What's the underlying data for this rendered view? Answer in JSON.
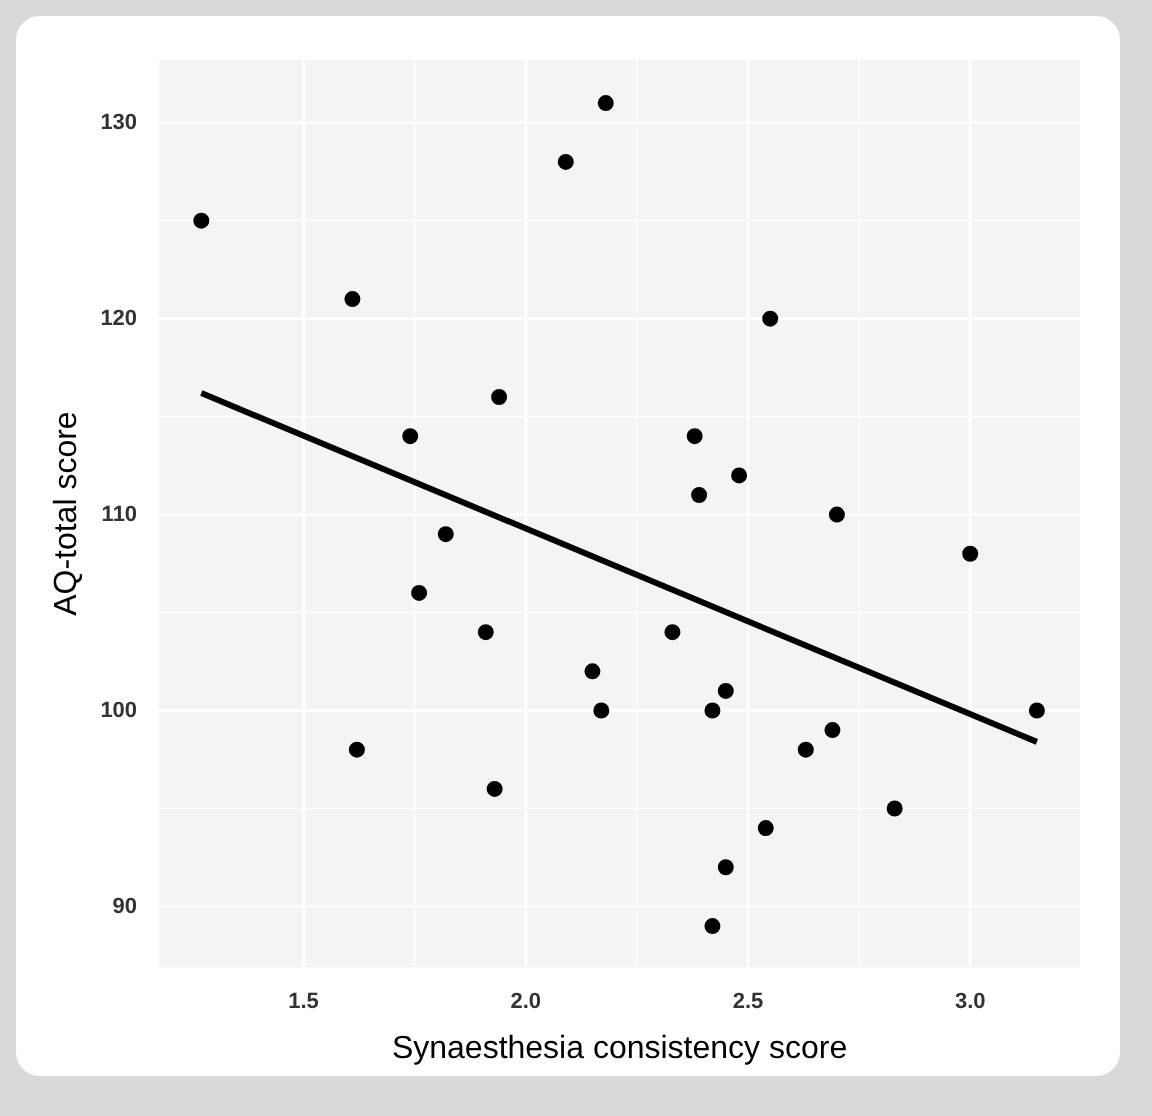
{
  "chart_data": {
    "type": "scatter",
    "xlabel": "Synaesthesia consistency score",
    "ylabel": "AQ-total score",
    "xlim": [
      1.175,
      3.247
    ],
    "xticks": [
      {
        "value": 1.5,
        "label": "1.5"
      },
      {
        "value": 2.0,
        "label": "2.0"
      },
      {
        "value": 2.5,
        "label": "2.5"
      },
      {
        "value": 3.0,
        "label": "3.0"
      }
    ],
    "ylim": [
      86.9,
      133.2
    ],
    "yticks": [
      90,
      100,
      110,
      120,
      130
    ],
    "grid": true,
    "legend": false,
    "series": [
      {
        "marker": "circle",
        "color": "#000000",
        "x": [
          1.27,
          1.61,
          1.62,
          1.74,
          1.76,
          1.82,
          1.91,
          1.93,
          1.94,
          2.09,
          2.15,
          2.17,
          2.18,
          2.33,
          2.38,
          2.39,
          2.42,
          2.42,
          2.45,
          2.45,
          2.48,
          2.54,
          2.55,
          2.63,
          2.69,
          2.7,
          2.83,
          3.0,
          3.15
        ],
        "values": [
          125,
          121,
          98,
          114,
          106,
          109,
          104,
          96,
          116,
          128,
          102,
          100,
          131,
          104,
          114,
          111,
          100,
          89,
          101,
          92,
          112,
          94,
          120,
          98,
          99,
          110,
          95,
          108,
          100
        ]
      },
      {
        "type": "line",
        "color": "#000000",
        "x": [
          1.27,
          3.15
        ],
        "values": [
          116.2,
          98.4
        ]
      }
    ]
  }
}
